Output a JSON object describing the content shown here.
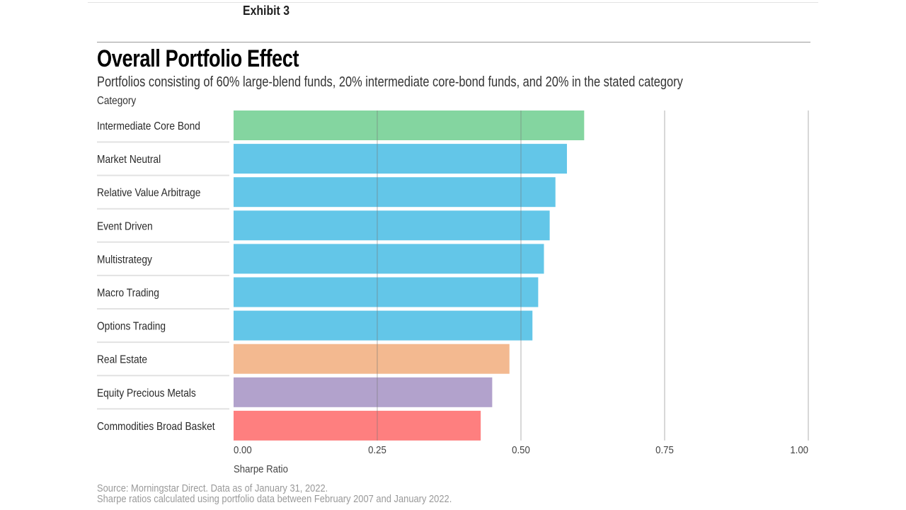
{
  "exhibit_label": "Exhibit 3",
  "title": "Overall Portfolio Effect",
  "subtitle": "Portfolios consisting of 60% large-blend funds, 20% intermediate core-bond funds, and 20% in the stated category",
  "category_header": "Category",
  "footer": {
    "source": "Source: Morningstar Direct. Data as of January 31, 2022.",
    "note": "Sharpe ratios calculated using portfolio data between February 2007 and January 2022."
  },
  "chart_data": {
    "type": "bar",
    "orientation": "horizontal",
    "title": "Overall Portfolio Effect",
    "subtitle": "Portfolios consisting of 60% large-blend funds, 20% intermediate core-bond funds, and 20% in the stated category",
    "ylabel": "Category",
    "xlabel": "Sharpe Ratio",
    "xlim": [
      0,
      1.0
    ],
    "xticks": [
      0,
      0.25,
      0.5,
      0.75,
      1.0
    ],
    "xtick_labels": [
      "0.00",
      "0.25",
      "0.50",
      "0.75",
      "1.00"
    ],
    "grid": true,
    "categories": [
      "Intermediate Core Bond",
      "Market Neutral",
      "Relative Value Arbitrage",
      "Event Driven",
      "Multistrategy",
      "Macro Trading",
      "Options Trading",
      "Real Estate",
      "Equity Precious Metals",
      "Commodities Broad Basket"
    ],
    "values": [
      0.61,
      0.58,
      0.56,
      0.55,
      0.54,
      0.53,
      0.52,
      0.48,
      0.45,
      0.43
    ],
    "colors": [
      "#84d5a0",
      "#63c6e8",
      "#63c6e8",
      "#63c6e8",
      "#63c6e8",
      "#63c6e8",
      "#63c6e8",
      "#f3b990",
      "#b2a2cc",
      "#fe7f7f"
    ],
    "source": "Source: Morningstar Direct. Data as of January 31, 2022.",
    "note": "Sharpe ratios calculated using portfolio data between February 2007 and January 2022."
  }
}
